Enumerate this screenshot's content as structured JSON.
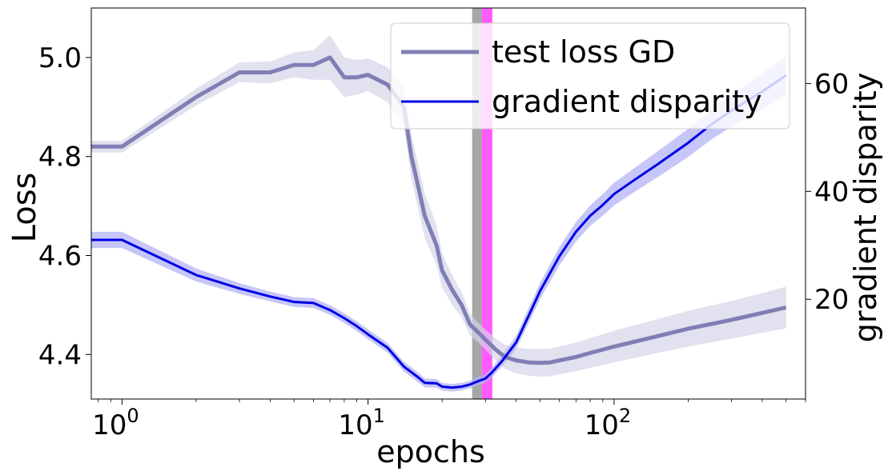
{
  "chart_data": {
    "type": "line",
    "xscale": "log",
    "xlabel": "epochs",
    "ylabel_left": "Loss",
    "ylabel_right": "gradient disparity",
    "xlim": [
      0.75,
      600
    ],
    "ylim_left": [
      4.31,
      5.1
    ],
    "ylim_right": [
      1.5,
      74.0
    ],
    "x_ticks": [
      {
        "value": 1,
        "base": "10",
        "exp": "0"
      },
      {
        "value": 10,
        "base": "10",
        "exp": "1"
      },
      {
        "value": 100,
        "base": "10",
        "exp": "2"
      }
    ],
    "y_ticks_left": [
      {
        "value": 4.4,
        "label": "4.4"
      },
      {
        "value": 4.6,
        "label": "4.6"
      },
      {
        "value": 4.8,
        "label": "4.8"
      },
      {
        "value": 5.0,
        "label": "5.0"
      }
    ],
    "y_ticks_right": [
      {
        "value": 20,
        "label": "20"
      },
      {
        "value": 40,
        "label": "40"
      },
      {
        "value": 60,
        "label": "60"
      }
    ],
    "vertical_bands": [
      {
        "name": "gray-band",
        "x_start": 26.5,
        "x_end": 29.0,
        "color": "#a6a6a6"
      },
      {
        "name": "magenta-band",
        "x_start": 29.0,
        "x_end": 32.0,
        "color": "#ff4dff"
      }
    ],
    "series": [
      {
        "name": "test loss GD",
        "axis": "left",
        "color": "#7f7fb5",
        "band_color": "#d4d4e8",
        "x": [
          0.75,
          1,
          2,
          3,
          4,
          5,
          6,
          7,
          8,
          9,
          10,
          12,
          14,
          15,
          17,
          19,
          20,
          22,
          24,
          26,
          28,
          30,
          33,
          36,
          40,
          45,
          50,
          55,
          60,
          70,
          80,
          100,
          150,
          200,
          300,
          400,
          500
        ],
        "y": [
          4.82,
          4.82,
          4.92,
          4.97,
          4.97,
          4.985,
          4.985,
          5.0,
          4.96,
          4.96,
          4.965,
          4.945,
          4.9,
          4.8,
          4.68,
          4.62,
          4.57,
          4.53,
          4.5,
          4.46,
          4.445,
          4.43,
          4.41,
          4.395,
          4.388,
          4.384,
          4.383,
          4.384,
          4.388,
          4.395,
          4.403,
          4.416,
          4.437,
          4.452,
          4.47,
          4.484,
          4.495
        ],
        "band": [
          0.012,
          0.012,
          0.017,
          0.02,
          0.022,
          0.025,
          0.03,
          0.045,
          0.04,
          0.035,
          0.033,
          0.035,
          0.04,
          0.045,
          0.045,
          0.04,
          0.035,
          0.03,
          0.025,
          0.022,
          0.02,
          0.02,
          0.022,
          0.024,
          0.026,
          0.027,
          0.028,
          0.028,
          0.028,
          0.029,
          0.03,
          0.032,
          0.034,
          0.036,
          0.038,
          0.04,
          0.042
        ]
      },
      {
        "name": "gradient disparity",
        "axis": "right",
        "color": "#0000e6",
        "band_color": "#b3b3f5",
        "x": [
          0.75,
          1,
          2,
          3,
          4,
          5,
          6,
          7,
          8,
          9,
          10,
          12,
          14,
          16,
          17,
          19,
          20,
          22,
          24,
          26,
          28,
          30,
          32,
          35,
          40,
          45,
          50,
          60,
          70,
          80,
          90,
          100,
          120,
          150,
          200,
          250,
          300,
          400,
          500
        ],
        "y": [
          31.0,
          31.0,
          24.5,
          22.0,
          20.5,
          19.5,
          19.3,
          18.0,
          16.5,
          15.0,
          13.5,
          11.0,
          7.5,
          5.5,
          4.5,
          4.4,
          3.8,
          3.6,
          3.8,
          4.2,
          4.8,
          5.3,
          6.5,
          8.5,
          12.0,
          17.0,
          21.5,
          28.0,
          32.5,
          35.5,
          37.5,
          39.5,
          42.0,
          45.0,
          49.0,
          52.5,
          55.0,
          58.5,
          61.5
        ],
        "band": [
          1.5,
          1.5,
          1.2,
          1.0,
          0.9,
          0.9,
          0.9,
          0.9,
          0.9,
          0.9,
          0.9,
          0.9,
          0.9,
          0.9,
          0.8,
          0.8,
          0.7,
          0.7,
          0.7,
          0.7,
          0.8,
          0.8,
          0.9,
          1.0,
          1.2,
          1.4,
          1.5,
          1.7,
          1.8,
          1.9,
          2.0,
          2.1,
          2.2,
          2.4,
          2.6,
          2.8,
          3.0,
          3.3,
          3.6
        ]
      }
    ],
    "legend": {
      "placement": "top-right",
      "entries": [
        {
          "label": "test loss GD",
          "color": "#7f7fb5"
        },
        {
          "label": "gradient disparity",
          "color": "#0000e6"
        }
      ]
    }
  }
}
